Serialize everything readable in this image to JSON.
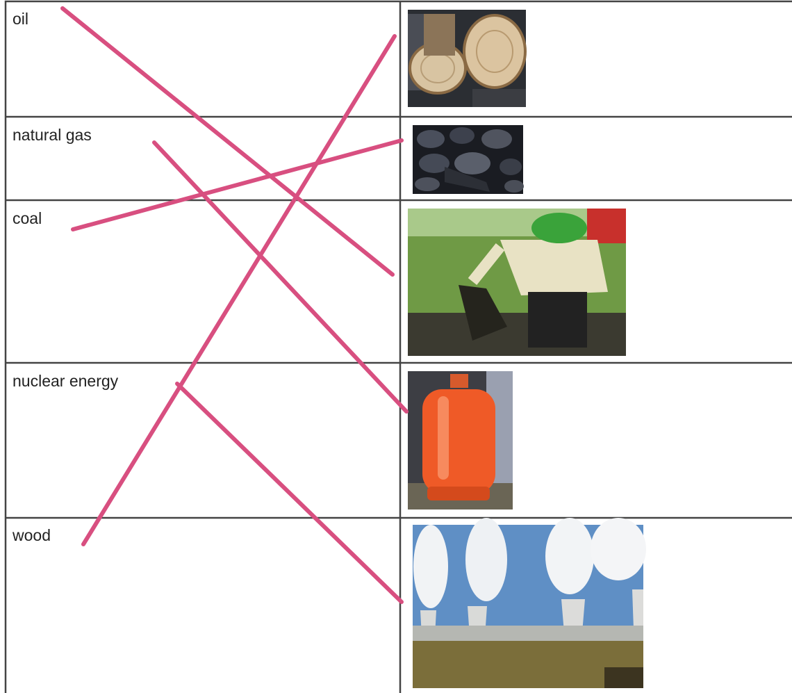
{
  "table": {
    "rows": [
      "oil",
      "natural gas",
      "coal",
      "nuclear energy",
      "wood"
    ]
  }
}
